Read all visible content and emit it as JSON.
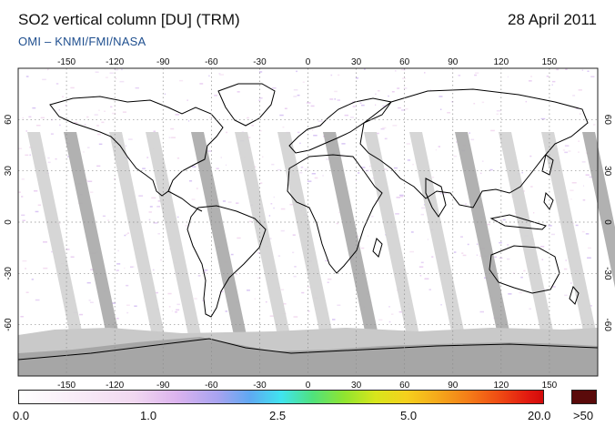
{
  "header": {
    "title": "SO2 vertical column [DU] (TRM)",
    "date": "28 April 2011",
    "credit": "OMI  –  KNMI/FMI/NASA"
  },
  "map": {
    "projection": "equirectangular",
    "lon_ticks": [
      "-150",
      "-120",
      "-90",
      "-60",
      "-30",
      "0",
      "30",
      "60",
      "90",
      "120",
      "150"
    ],
    "lat_ticks": [
      "60",
      "30",
      "0",
      "-30",
      "-60"
    ],
    "colors": {
      "swath_gap": "#d2d2d2",
      "swath_overlap": "#a9a9a9",
      "antarctic_mask": "#bdbdbd",
      "coastline": "#000000",
      "grid": "#8c8c8c"
    }
  },
  "colorbar": {
    "labels": [
      "0.0",
      "1.0",
      "2.5",
      "5.0",
      "20.0"
    ],
    "over_label": ">50",
    "over_color": "#5a0a0a"
  }
}
